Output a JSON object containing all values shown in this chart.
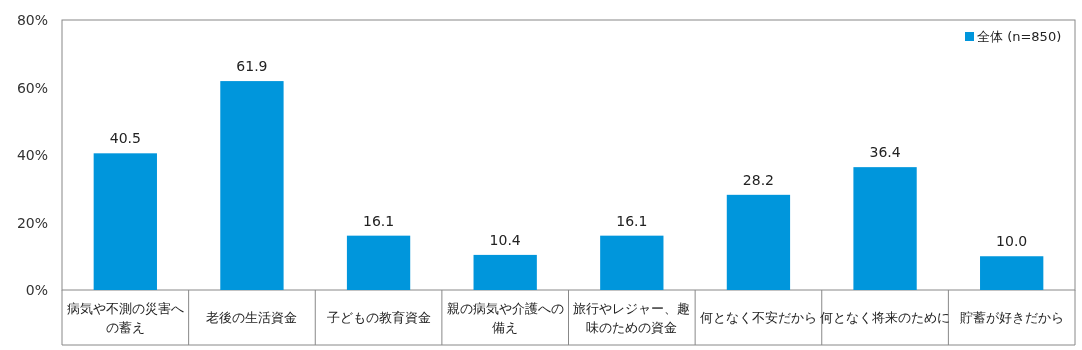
{
  "chart_data": {
    "type": "bar",
    "categories": [
      "病気や不測の災害への蓄え",
      "老後の生活資金",
      "子どもの教育資金",
      "親の病気や介護への備え",
      "旅行やレジャー、趣味のための資金",
      "何となく不安だから",
      "何となく将来のために",
      "貯蓄が好きだから"
    ],
    "series": [
      {
        "name": "全体 (n=850)",
        "color": "#0096dc",
        "values": [
          40.5,
          61.9,
          16.1,
          10.4,
          16.1,
          28.2,
          36.4,
          10.0
        ],
        "value_labels": [
          "40.5",
          "61.9",
          "16.1",
          "10.4",
          "16.1",
          "28.2",
          "36.4",
          "10.0"
        ]
      }
    ],
    "ylim": [
      0,
      80
    ],
    "yticks": [
      {
        "value": 0,
        "label": "0%"
      },
      {
        "value": 20,
        "label": "20%"
      },
      {
        "value": 40,
        "label": "40%"
      },
      {
        "value": 60,
        "label": "60%"
      },
      {
        "value": 80,
        "label": "80%"
      }
    ],
    "legend": "top right",
    "grid": false
  }
}
